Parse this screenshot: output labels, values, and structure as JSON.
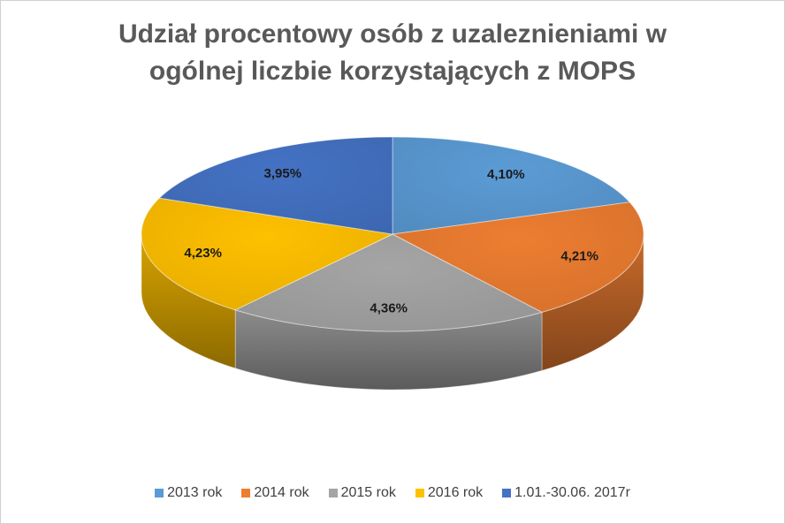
{
  "title_lines": [
    "Udział procentowy osób z uzaleznieniami w",
    "ogólnej liczbie korzystających z MOPS"
  ],
  "chart_data": {
    "type": "pie",
    "style": "3d",
    "categories": [
      "2013 rok",
      "2014 rok",
      "2015 rok",
      "2016 rok",
      "1.01.-30.06.  2017r"
    ],
    "values": [
      4.1,
      4.21,
      4.36,
      4.23,
      3.95
    ],
    "data_labels": [
      "4,10%",
      "4,21%",
      "4,36%",
      "4,23%",
      "3,95%"
    ],
    "colors": [
      "#5B9BD5",
      "#ED7D31",
      "#A5A5A5",
      "#FFC000",
      "#4472C4"
    ],
    "legend_position": "bottom",
    "start_angle": "12 o'clock, clockwise"
  }
}
